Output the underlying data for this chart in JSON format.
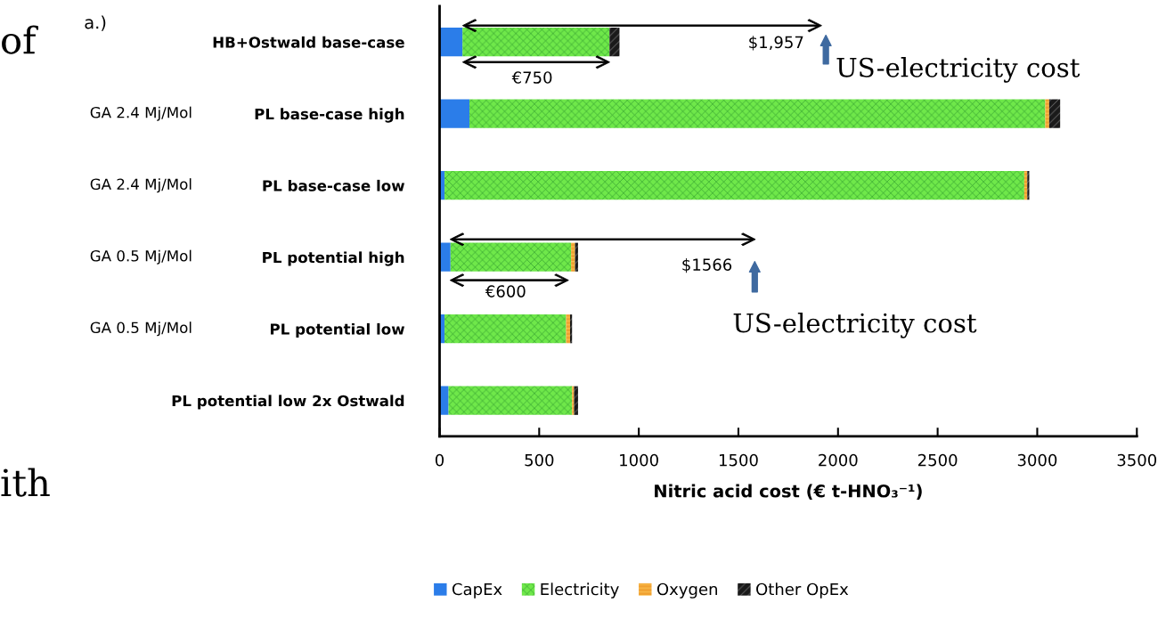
{
  "chart_data": {
    "type": "bar",
    "orientation": "horizontal",
    "stacked": true,
    "categories": [
      "HB+Ostwald base-case",
      "PL base-case high",
      "PL base-case low",
      "PL potential high",
      "PL potential low",
      "PL potential low 2x Ostwald"
    ],
    "series": [
      {
        "name": "CapEx",
        "color": "#2b7de9",
        "values": [
          115,
          150,
          25,
          55,
          25,
          45
        ]
      },
      {
        "name": "Electricity",
        "color": "#6fe84a",
        "values": [
          738,
          2890,
          2910,
          605,
          610,
          620
        ]
      },
      {
        "name": "Oxygen",
        "color": "#f0a030",
        "values": [
          0,
          20,
          15,
          20,
          20,
          10
        ]
      },
      {
        "name": "Other OpEx",
        "color": "#1a1a1a",
        "values": [
          50,
          55,
          10,
          15,
          10,
          20
        ]
      }
    ],
    "xlabel": "Nitric acid cost (€ t-HNO₃⁻¹)",
    "xlim": [
      0,
      3500
    ],
    "xticks": [
      0,
      500,
      1000,
      1500,
      2000,
      2500,
      3000,
      3500
    ],
    "grid": false,
    "legend": "bottom",
    "annotations": [
      "$1,957",
      "€750",
      "US-electricity cost",
      "$1566",
      "€600",
      "US-electricity cost",
      "a.)",
      "GA 2.4 Mj/Mol",
      "GA 2.4 Mj/Mol",
      "GA 0.5 Mj/Mol",
      "GA 0.5 Mj/Mol",
      "of",
      "ith"
    ]
  }
}
